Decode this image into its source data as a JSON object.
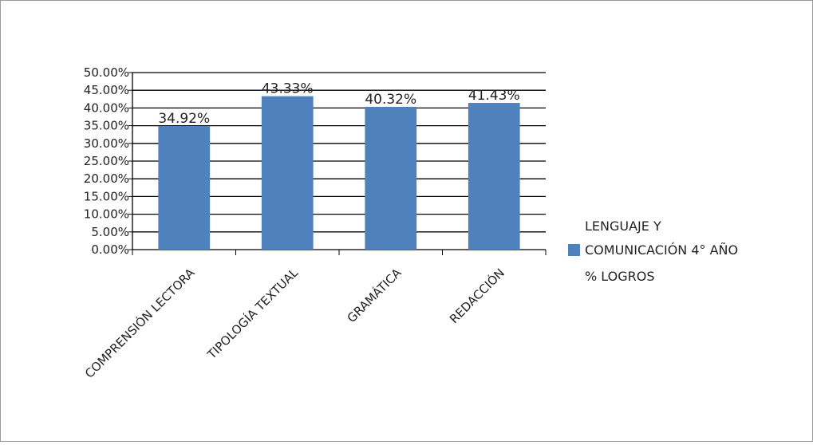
{
  "chart_data": {
    "type": "bar",
    "categories": [
      "COMPRENSIÓN LECTORA",
      "TIPOLOGÍA TEXTUAL",
      "GRAMÁTICA",
      "REDACCIÓN"
    ],
    "series": [
      {
        "name": "LENGUAJE Y COMUNICACIÓN  4° AÑO % LOGROS",
        "values": [
          34.92,
          43.33,
          40.32,
          41.43
        ],
        "value_labels": [
          "34.92%",
          "43.33%",
          "40.32%",
          "41.43%"
        ],
        "color": "#4f81bd"
      }
    ],
    "ylim": [
      0,
      50
    ],
    "ytick_labels": [
      "0.00%",
      "5.00%",
      "10.00%",
      "15.00%",
      "20.00%",
      "25.00%",
      "30.00%",
      "35.00%",
      "40.00%",
      "45.00%",
      "50.00%"
    ],
    "legend": {
      "placement": "right",
      "lines": [
        "LENGUAJE Y",
        "COMUNICACIÓN  4° AÑO",
        "% LOGROS"
      ]
    },
    "grid": true,
    "title": "",
    "xlabel": "",
    "ylabel": ""
  }
}
